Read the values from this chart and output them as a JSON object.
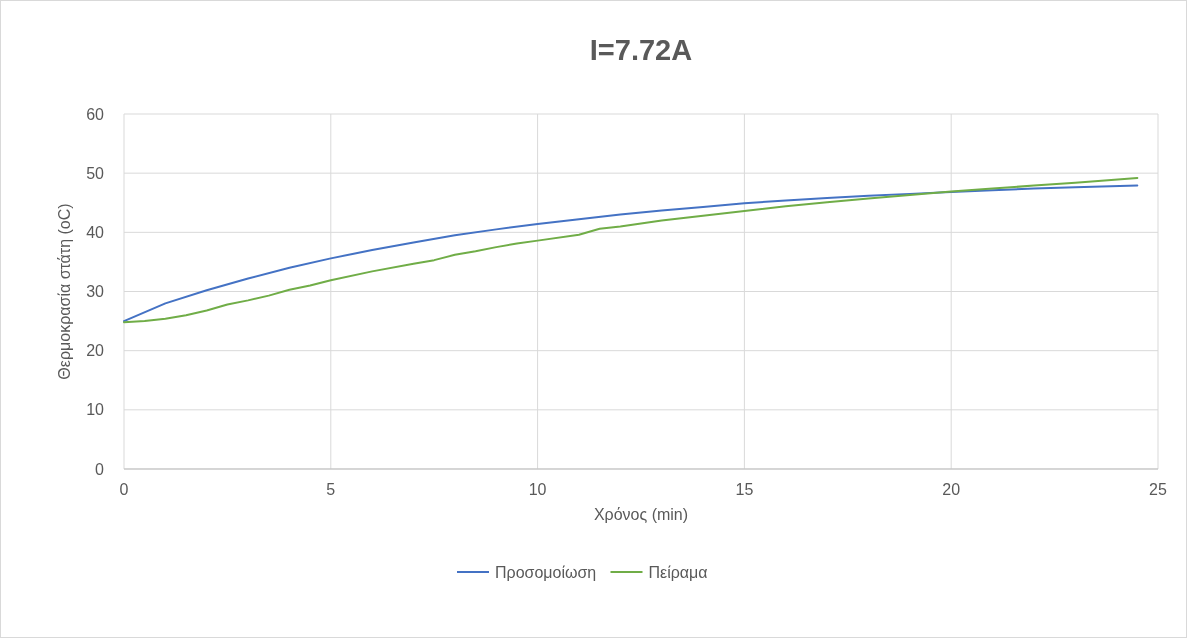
{
  "chart_data": {
    "type": "line",
    "title": "I=7.72A",
    "xlabel": "Χρόνος (min)",
    "ylabel": "Θερμοκρασία στάτη (oC)",
    "xlim": [
      0,
      25
    ],
    "xticks": [
      0,
      5,
      10,
      15,
      20,
      25
    ],
    "ylim": [
      0,
      60
    ],
    "yticks": [
      0,
      10,
      20,
      30,
      40,
      50,
      60
    ],
    "grid": true,
    "legend": "bottom",
    "marker": "none",
    "line_style": "solid",
    "series": [
      {
        "name": "Προσομοίωση",
        "color": "#4472c4",
        "x": [
          0,
          1,
          2,
          3,
          4,
          5,
          6,
          7,
          8,
          9,
          10,
          11,
          12,
          13,
          14,
          15,
          16,
          17,
          18,
          19,
          20,
          21,
          22,
          23,
          24.5
        ],
        "values": [
          25,
          28,
          30.2,
          32.2,
          34,
          35.6,
          37,
          38.3,
          39.5,
          40.5,
          41.4,
          42.2,
          43,
          43.7,
          44.3,
          44.9,
          45.4,
          45.8,
          46.2,
          46.5,
          46.8,
          47.1,
          47.4,
          47.6,
          47.9
        ]
      },
      {
        "name": "Πείραμα",
        "color": "#70ad47",
        "x": [
          0,
          0.5,
          1,
          1.5,
          2,
          2.5,
          3,
          3.5,
          4,
          4.5,
          5,
          6,
          7,
          7.5,
          8,
          8.5,
          9,
          9.5,
          10,
          11,
          11.5,
          12,
          13,
          14,
          15,
          16,
          17,
          18,
          19,
          20,
          21,
          22,
          23,
          24.5
        ],
        "values": [
          24.8,
          25,
          25.4,
          26,
          26.8,
          27.8,
          28.5,
          29.3,
          30.3,
          31,
          31.9,
          33.4,
          34.7,
          35.3,
          36.2,
          36.8,
          37.5,
          38.1,
          38.6,
          39.6,
          40.6,
          41,
          42,
          42.8,
          43.6,
          44.4,
          45.1,
          45.7,
          46.3,
          46.9,
          47.4,
          47.9,
          48.4,
          49.2
        ]
      }
    ]
  }
}
